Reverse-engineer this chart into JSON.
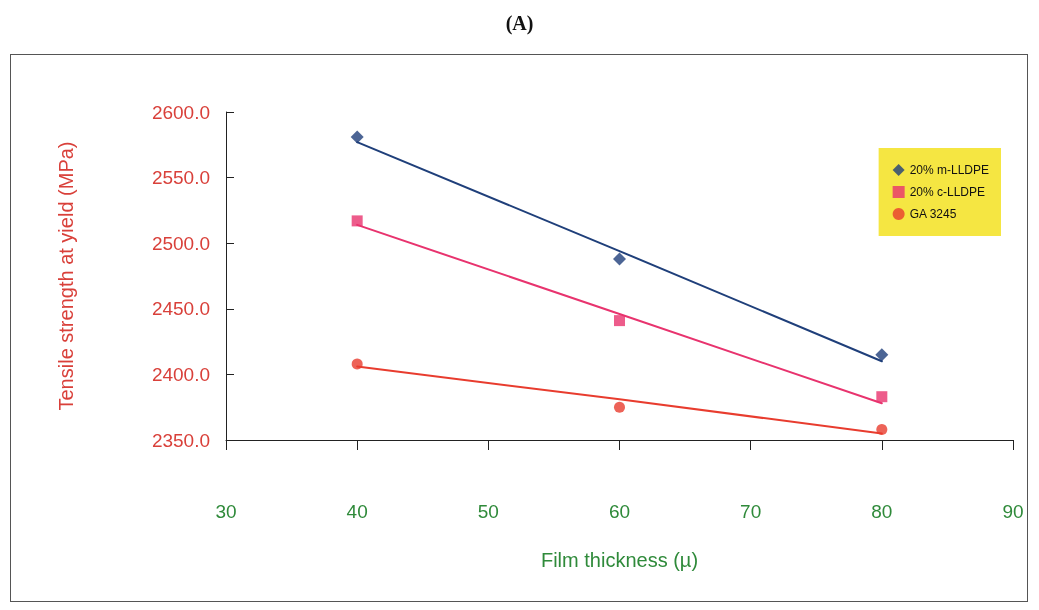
{
  "chart_data": {
    "type": "scatter",
    "title": "(A)",
    "xlabel": "Film thickness (µ)",
    "ylabel": "Tensile strength at yield (MPa)",
    "xlim": [
      30,
      90
    ],
    "xticks": [
      30,
      40,
      50,
      60,
      70,
      80,
      90
    ],
    "ylim": [
      2350,
      2600
    ],
    "yticks": [
      {
        "value": 2350,
        "label": "2350.0"
      },
      {
        "value": 2400,
        "label": "2400.0"
      },
      {
        "value": 2450,
        "label": "2450.0"
      },
      {
        "value": 2500,
        "label": "2500.0"
      },
      {
        "value": 2550,
        "label": "2550.0"
      },
      {
        "value": 2600,
        "label": "2600.0"
      }
    ],
    "grid": false,
    "legend": "top right",
    "x": [
      40,
      60,
      80
    ],
    "series": [
      {
        "name": "20% m-LLDPE",
        "color": "#1f3f7a",
        "marker": "diamond",
        "values": [
          2581,
          2488,
          2415
        ]
      },
      {
        "name": "20% c-LLDPE",
        "color": "#e8336e",
        "marker": "square",
        "values": [
          2517,
          2441,
          2383
        ]
      },
      {
        "name": "GA 3245",
        "color": "#e83c2e",
        "marker": "circle",
        "values": [
          2408,
          2375,
          2358
        ]
      },
      {
        "type": "line",
        "color": "#1f3f7a",
        "marker": "none",
        "values": [
          2577,
          2494,
          2410
        ]
      },
      {
        "type": "line",
        "color": "#e8336e",
        "marker": "none",
        "values": [
          2514,
          2446,
          2378
        ]
      },
      {
        "type": "line",
        "color": "#e83c2e",
        "marker": "none",
        "values": [
          2406,
          2381,
          2355
        ]
      }
    ]
  }
}
